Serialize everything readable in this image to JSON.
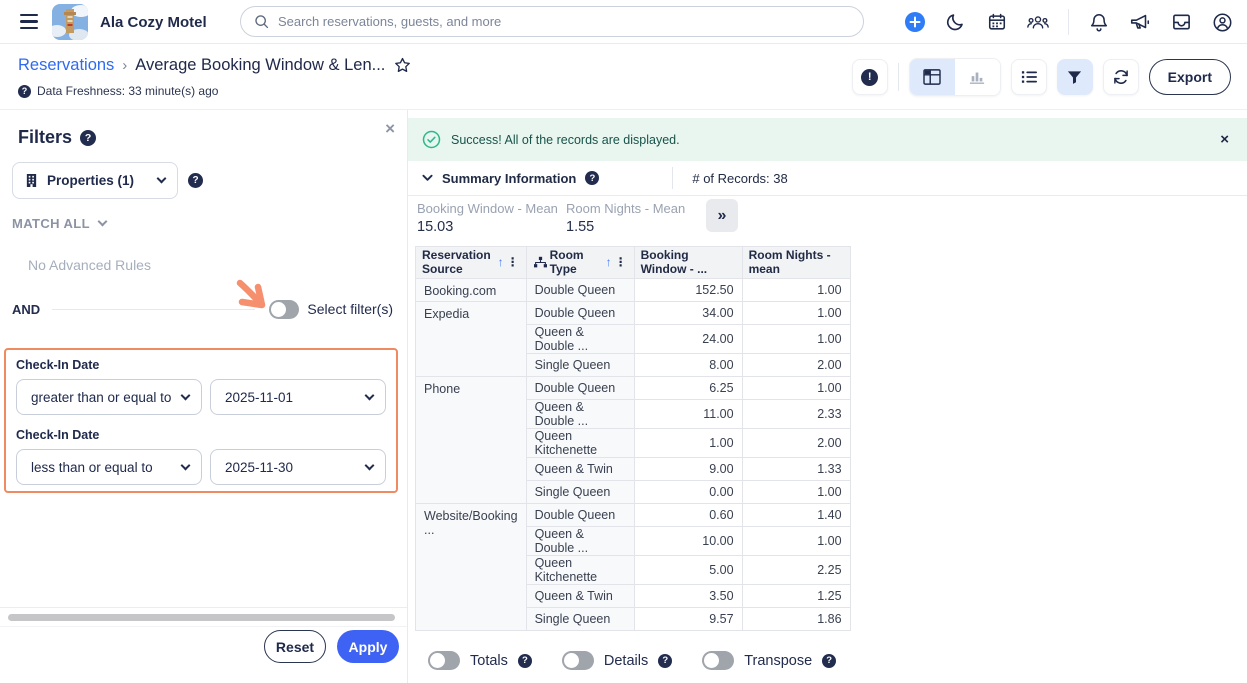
{
  "topbar": {
    "brand": "Ala Cozy Motel",
    "search_placeholder": "Search reservations, guests, and more"
  },
  "breadcrumb": {
    "parent": "Reservations",
    "current": "Average Booking Window & Len...",
    "freshness": "Data Freshness: 33 minute(s) ago"
  },
  "toolbar": {
    "export_label": "Export"
  },
  "filters_panel": {
    "title": "Filters",
    "properties_label": "Properties (1)",
    "match_label": "MATCH ALL",
    "no_rules": "No Advanced Rules",
    "and_label": "AND",
    "select_filters_label": "Select filter(s)",
    "rules": [
      {
        "field": "Check-In Date",
        "operator": "greater than or equal to",
        "value": "2025-11-01"
      },
      {
        "field": "Check-In Date",
        "operator": "less than or equal to",
        "value": "2025-11-30"
      }
    ],
    "reset_label": "Reset",
    "apply_label": "Apply"
  },
  "banner": {
    "message": "Success! All of the records are displayed."
  },
  "summary": {
    "title": "Summary Information",
    "records_label": "# of Records: 38",
    "stats": [
      {
        "label": "Booking Window - Mean",
        "value": "15.03"
      },
      {
        "label": "Room Nights - Mean",
        "value": "1.55"
      }
    ]
  },
  "table": {
    "columns": [
      "Reservation Source",
      "Room Type",
      "Booking Window - ...",
      "Room Nights - mean"
    ],
    "groups": [
      {
        "source": "Booking.com",
        "rows": [
          [
            "Double Queen",
            "152.50",
            "1.00"
          ]
        ]
      },
      {
        "source": "Expedia",
        "rows": [
          [
            "Double Queen",
            "34.00",
            "1.00"
          ],
          [
            "Queen & Double ...",
            "24.00",
            "1.00"
          ],
          [
            "Single Queen",
            "8.00",
            "2.00"
          ]
        ]
      },
      {
        "source": "Phone",
        "rows": [
          [
            "Double Queen",
            "6.25",
            "1.00"
          ],
          [
            "Queen & Double ...",
            "11.00",
            "2.33"
          ],
          [
            "Queen Kitchenette",
            "1.00",
            "2.00"
          ],
          [
            "Queen & Twin",
            "9.00",
            "1.33"
          ],
          [
            "Single Queen",
            "0.00",
            "1.00"
          ]
        ]
      },
      {
        "source": "Website/Booking ...",
        "rows": [
          [
            "Double Queen",
            "0.60",
            "1.40"
          ],
          [
            "Queen & Double ...",
            "10.00",
            "1.00"
          ],
          [
            "Queen Kitchenette",
            "5.00",
            "2.25"
          ],
          [
            "Queen & Twin",
            "3.50",
            "1.25"
          ],
          [
            "Single Queen",
            "9.57",
            "1.86"
          ]
        ]
      }
    ]
  },
  "footer_toggles": [
    {
      "label": "Totals"
    },
    {
      "label": "Details"
    },
    {
      "label": "Transpose"
    }
  ],
  "icons": {
    "help": "?",
    "close": "×",
    "sort_asc": "↑",
    "kebab": "⋮",
    "expand": "»",
    "breadcrumb_sep": "›"
  },
  "colors": {
    "accent_blue": "#3e63f4",
    "navy": "#1f2a4b",
    "orange": "#f08a60",
    "link_blue": "#2f6bf0",
    "filter_active_bg": "#dfe9fc",
    "success_green": "#2cb98a",
    "success_bg": "#e9f6f0"
  }
}
